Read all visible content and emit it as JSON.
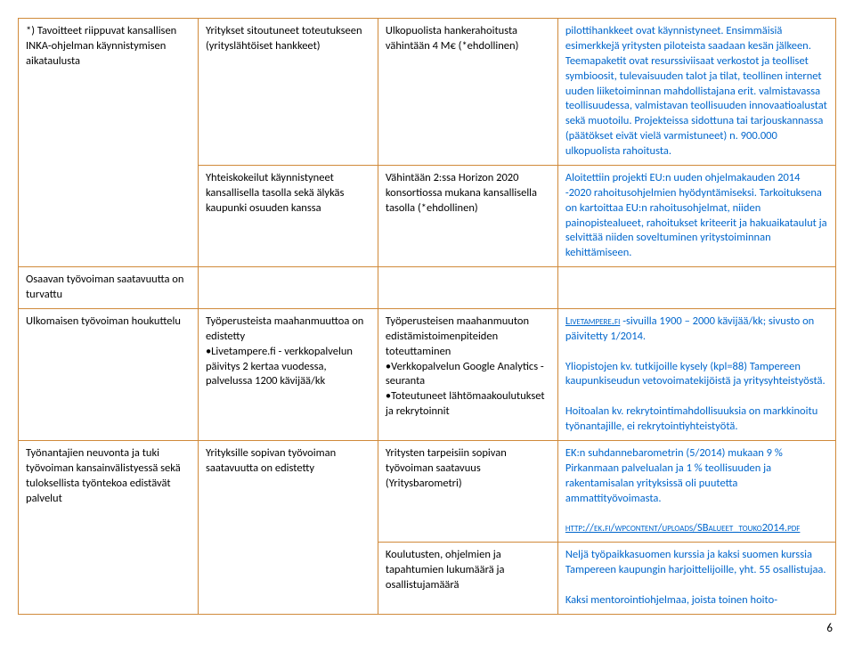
{
  "colors": {
    "border": "#d08a3a",
    "link": "#0066cc",
    "text": "#000000",
    "background": "#ffffff"
  },
  "typography": {
    "font_family": "Calibri",
    "font_size_pt": 10,
    "line_height": 1.35
  },
  "page_number": "6",
  "rows": [
    {
      "c1": "*) Tavoitteet riippuvat kansallisen INKA-ohjelman käynnistymisen aikataulusta",
      "c2": "Yritykset sitoutuneet toteutukseen (yrityslähtöiset hankkeet)",
      "c3": "Ulkopuolista hankerahoitusta vähintään 4 M€ (*ehdollinen)",
      "c4": "pilottihankkeet ovat käynnistyneet. Ensimmäisiä esimerkkejä yritysten piloteista saadaan kesän jälkeen. Teemapaketit ovat resurssiviisaat verkostot ja teolliset symbioosit, tulevaisuuden talot ja tilat, teollinen internet uuden liiketoiminnan mahdollistajana erit. valmistavassa teollisuudessa, valmistavan teollisuuden innovaatioalustat sekä muotoilu. Projekteissa sidottuna tai tarjouskannassa (päätökset eivät vielä varmistuneet) n. 900.000 ulkopuolista rahoitusta."
    },
    {
      "c1": "",
      "c2": "Yhteiskokeilut käynnistyneet kansallisella tasolla sekä älykäs kaupunki osuuden kanssa",
      "c3": "Vähintään 2:ssa Horizon 2020 konsortiossa mukana kansallisella tasolla (*ehdollinen)",
      "c4": "Aloitettiin projekti EU:n uuden ohjelmakauden 2014 -2020 rahoitusohjelmien hyödyntämiseksi. Tarkoituksena on kartoittaa EU:n rahoitusohjelmat, niiden painopistealueet, rahoitukset kriteerit ja hakuaikataulut ja selvittää niiden soveltuminen yritystoiminnan kehittämiseen."
    },
    {
      "c1": "Osaavan työvoiman saatavuutta on turvattu",
      "c2": "",
      "c3": "",
      "c4": ""
    },
    {
      "c1": "Ulkomaisen työvoiman houkuttelu",
      "c2_a": "Työperusteista maahanmuuttoa on edistetty",
      "c2_b": "•Livetampere.fi - verkkopalvelun päivitys 2 kertaa vuodessa, palvelussa 1200 kävijää/kk",
      "c3_a": "Työperusteisen maahanmuuton edistämistoimenpiteiden toteuttaminen",
      "c3_b": "•Verkkopalvelun Google Analytics -seuranta",
      "c3_c": "•Toteutuneet lähtömaakoulutukset ja rekrytoinnit",
      "c4_a_link": "Livetampere.fi",
      "c4_a_rest": "-sivuilla 1900 – 2000 kävijää/kk; sivusto on päivitetty 1/2014.",
      "c4_b": "Yliopistojen kv. tutkijoille kysely (kpl=88) Tampereen kaupunkiseudun vetovoimatekijöistä ja yritysyhteistyöstä.",
      "c4_c": "Hoitoalan kv. rekrytointimahdollisuuksia on markkinoitu työnantajille, ei rekrytointiyhteistyötä."
    },
    {
      "c1": "Työnantajien neuvonta ja tuki työvoiman kansainvälistyessä sekä tuloksellista työntekoa edistävät palvelut",
      "c2": "Yrityksille sopivan työvoiman saatavuutta on edistetty",
      "c3": "Yritysten tarpeisiin sopivan työvoiman saatavuus (Yritysbarometri)",
      "c4_a": "EK:n suhdannebarometrin (5/2014) mukaan 9 % Pirkanmaan palvelualan ja 1 % teollisuuden ja rakentamisalan yrityksissä oli puutetta ammattityövoimasta.",
      "c4_link": "http://ek.fi/wpcontent/uploads/SBalueet_touko2014.pdf"
    },
    {
      "c1": "",
      "c2": "",
      "c3": "Koulutusten, ohjelmien ja tapahtumien lukumäärä ja osallistujamäärä",
      "c4_a": "Neljä työpaikkasuomen kurssia ja kaksi suomen kurssia Tampereen kaupungin harjoittelijoille, yht. 55 osallistujaa.",
      "c4_b": "Kaksi mentorointiohjelmaa, joista toinen hoito-"
    }
  ]
}
